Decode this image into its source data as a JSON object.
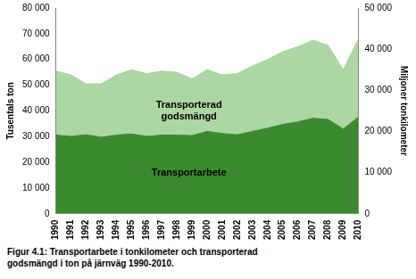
{
  "chart_data": {
    "type": "area",
    "caption": "Figur 4.1: Transportarbete i tonkilometer och transporterad godsmängd i ton på järnväg 1990-2010.",
    "ylabel": "Tusentals ton",
    "y2label": "Miljoner tonkilometer",
    "categories": [
      "1990",
      "1991",
      "1992",
      "1993",
      "1994",
      "1995",
      "1996",
      "1997",
      "1998",
      "1999",
      "2000",
      "2001",
      "2002",
      "2003",
      "2004",
      "2005",
      "2006",
      "2007",
      "2008",
      "2009",
      "2010"
    ],
    "series": [
      {
        "name": "Transportarbete",
        "color": "#3b8a2f",
        "axis": "y2",
        "values": [
          19100,
          18800,
          19200,
          18600,
          19100,
          19400,
          18800,
          19100,
          19100,
          19000,
          20000,
          19500,
          19200,
          20000,
          20800,
          21700,
          22300,
          23200,
          22900,
          20600,
          23500
        ]
      },
      {
        "name": "Transporterad godsmängd",
        "color": "#acd6a3",
        "values": [
          55500,
          54000,
          50500,
          50500,
          54000,
          56000,
          54500,
          55500,
          55000,
          52500,
          56000,
          54000,
          54500,
          57500,
          60000,
          63000,
          65000,
          67500,
          65500,
          56000,
          68000
        ]
      }
    ],
    "ylim": [
      0,
      80000
    ],
    "yticks": [
      0,
      {
        "value": 10000,
        "label": "10 000"
      },
      {
        "value": 20000,
        "label": "20 000"
      },
      {
        "value": 30000,
        "label": "30 000"
      },
      {
        "value": 40000,
        "label": "40 000"
      },
      {
        "value": 50000,
        "label": "50 000"
      },
      {
        "value": 60000,
        "label": "60 000"
      },
      {
        "value": 70000,
        "label": "70 000"
      },
      {
        "value": 80000,
        "label": "80 000"
      }
    ],
    "y2lim": [
      0,
      50000
    ],
    "y2ticks": [
      0,
      {
        "value": 10000,
        "label": "10 000"
      },
      {
        "value": 20000,
        "label": "20 000"
      },
      {
        "value": 30000,
        "label": "30 000"
      },
      {
        "value": 40000,
        "label": "40 000"
      },
      {
        "value": 50000,
        "label": "50 000"
      }
    ],
    "grid": false
  }
}
